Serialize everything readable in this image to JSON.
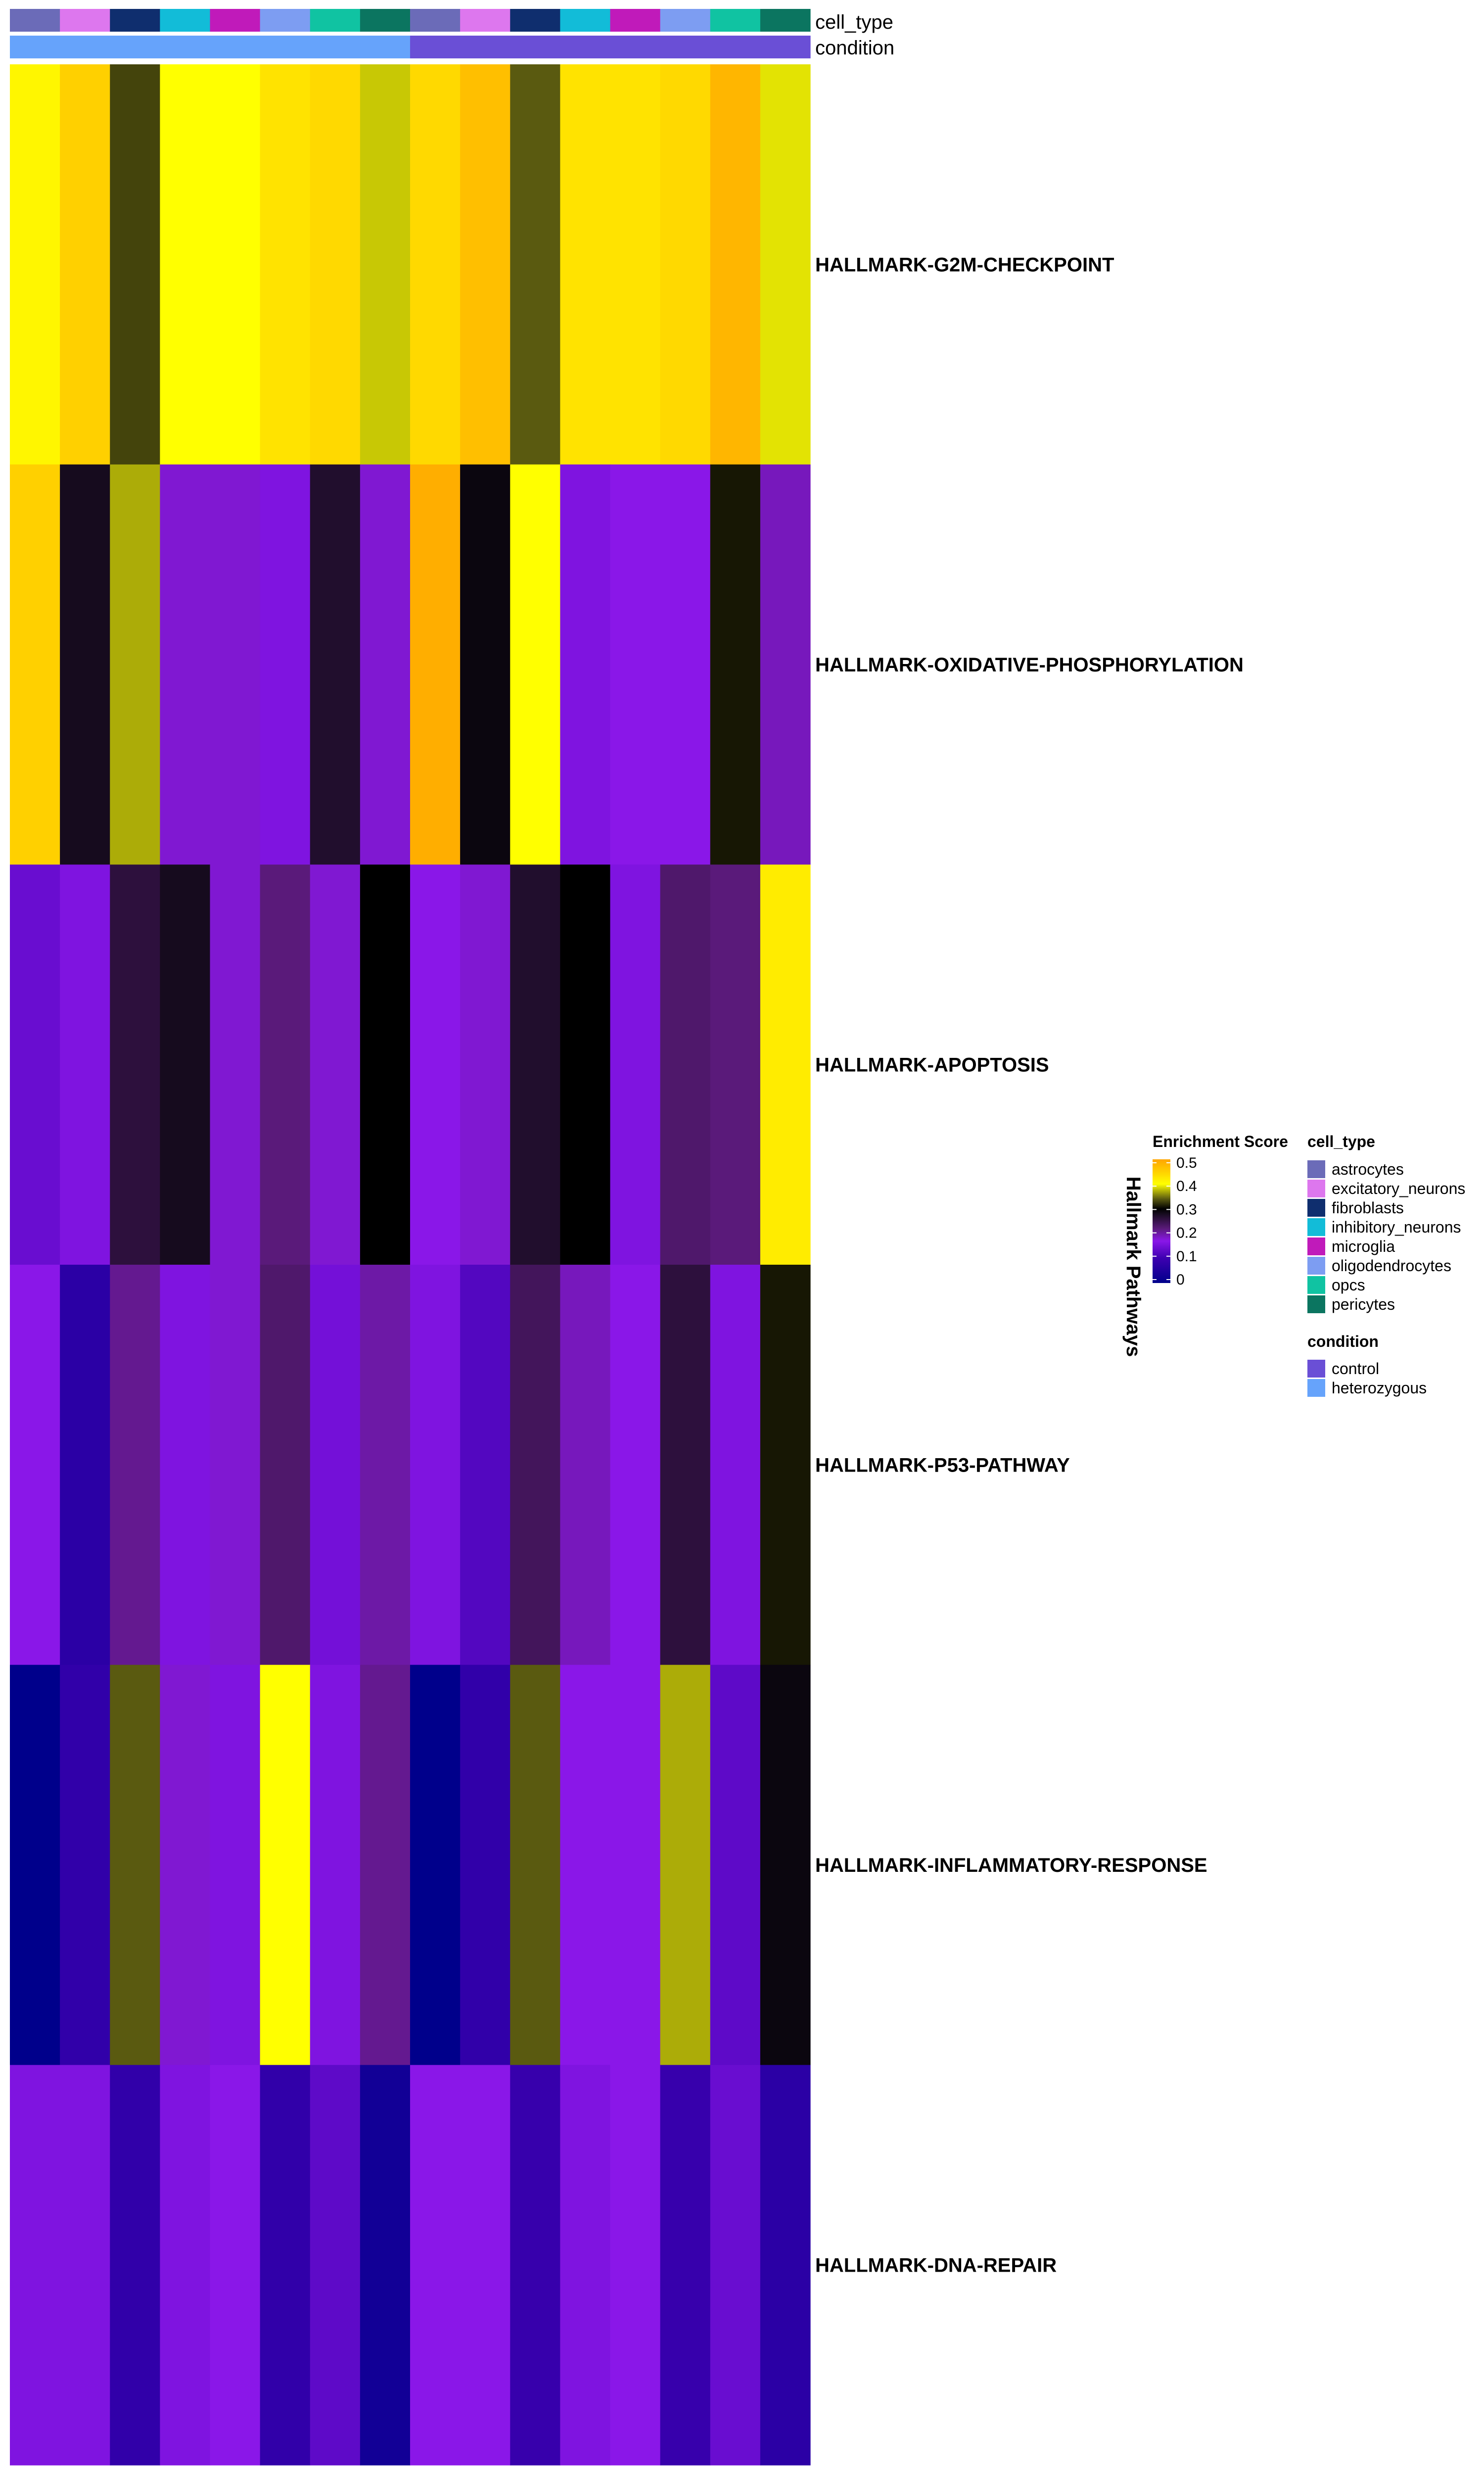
{
  "chart_data": {
    "type": "heatmap",
    "annotation_labels": {
      "cell_type": "cell_type",
      "condition": "condition"
    },
    "columns": [
      {
        "cell_type": "astrocytes",
        "condition": "heterozygous"
      },
      {
        "cell_type": "excitatory_neurons",
        "condition": "heterozygous"
      },
      {
        "cell_type": "fibroblasts",
        "condition": "heterozygous"
      },
      {
        "cell_type": "inhibitory_neurons",
        "condition": "heterozygous"
      },
      {
        "cell_type": "microglia",
        "condition": "heterozygous"
      },
      {
        "cell_type": "oligodendrocytes",
        "condition": "heterozygous"
      },
      {
        "cell_type": "opcs",
        "condition": "heterozygous"
      },
      {
        "cell_type": "pericytes",
        "condition": "heterozygous"
      },
      {
        "cell_type": "astrocytes",
        "condition": "control"
      },
      {
        "cell_type": "excitatory_neurons",
        "condition": "control"
      },
      {
        "cell_type": "fibroblasts",
        "condition": "control"
      },
      {
        "cell_type": "inhibitory_neurons",
        "condition": "control"
      },
      {
        "cell_type": "microglia",
        "condition": "control"
      },
      {
        "cell_type": "oligodendrocytes",
        "condition": "control"
      },
      {
        "cell_type": "opcs",
        "condition": "control"
      },
      {
        "cell_type": "pericytes",
        "condition": "control"
      }
    ],
    "rows": [
      {
        "name": "HALLMARK-G2M-CHECKPOINT",
        "values": [
          0.41,
          0.45,
          0.33,
          0.4,
          0.4,
          0.43,
          0.44,
          0.38,
          0.44,
          0.47,
          0.34,
          0.43,
          0.43,
          0.44,
          0.48,
          0.39
        ]
      },
      {
        "name": "HALLMARK-OXIDATIVE-PHOSPHORYLATION",
        "values": [
          0.45,
          0.28,
          0.37,
          0.18,
          0.18,
          0.16,
          0.27,
          0.18,
          0.49,
          0.29,
          0.4,
          0.16,
          0.17,
          0.17,
          0.31,
          0.19
        ]
      },
      {
        "name": "HALLMARK-APOPTOSIS",
        "values": [
          0.14,
          0.16,
          0.26,
          0.28,
          0.18,
          0.22,
          0.18,
          0.3,
          0.17,
          0.18,
          0.27,
          0.3,
          0.16,
          0.23,
          0.22,
          0.42
        ]
      },
      {
        "name": "HALLMARK-P53-PATHWAY",
        "values": [
          0.17,
          0.07,
          0.21,
          0.16,
          0.18,
          0.23,
          0.15,
          0.2,
          0.16,
          0.12,
          0.24,
          0.19,
          0.17,
          0.26,
          0.16,
          0.31
        ]
      },
      {
        "name": "HALLMARK-INFLAMMATORY-RESPONSE",
        "values": [
          0.0,
          0.08,
          0.34,
          0.18,
          0.16,
          0.4,
          0.16,
          0.21,
          0.0,
          0.08,
          0.34,
          0.17,
          0.17,
          0.37,
          0.13,
          0.29
        ]
      },
      {
        "name": "HALLMARK-DNA-REPAIR",
        "values": [
          0.16,
          0.16,
          0.08,
          0.16,
          0.17,
          0.08,
          0.13,
          0.03,
          0.17,
          0.17,
          0.09,
          0.16,
          0.17,
          0.09,
          0.14,
          0.07
        ]
      }
    ],
    "row_title": "Hallmark Pathways",
    "color_scale": {
      "title": "Enrichment Score",
      "ticks": [
        "0",
        "0.1",
        "0.2",
        "0.3",
        "0.4",
        "0.5"
      ],
      "tick_values": [
        0,
        0.1,
        0.2,
        0.3,
        0.4,
        0.5
      ],
      "range": [
        0,
        0.5
      ],
      "stops": [
        {
          "v": 0.0,
          "c": "#00008b"
        },
        {
          "v": 0.1,
          "c": "#3d00b0"
        },
        {
          "v": 0.17,
          "c": "#8a17e8"
        },
        {
          "v": 0.22,
          "c": "#5a1a7a"
        },
        {
          "v": 0.28,
          "c": "#160b1e"
        },
        {
          "v": 0.3,
          "c": "#000000"
        },
        {
          "v": 0.34,
          "c": "#5a5a10"
        },
        {
          "v": 0.4,
          "c": "#ffff00"
        },
        {
          "v": 0.45,
          "c": "#ffd000"
        },
        {
          "v": 0.5,
          "c": "#ffa500"
        }
      ]
    },
    "legend_cell_type": {
      "title": "cell_type",
      "entries": [
        {
          "label": "astrocytes",
          "color": "#6b6bb8"
        },
        {
          "label": "excitatory_neurons",
          "color": "#dd77ee"
        },
        {
          "label": "fibroblasts",
          "color": "#0f2e6e"
        },
        {
          "label": "inhibitory_neurons",
          "color": "#12bcd8"
        },
        {
          "label": "microglia",
          "color": "#c01aba"
        },
        {
          "label": "oligodendrocytes",
          "color": "#7d9df2"
        },
        {
          "label": "opcs",
          "color": "#10c3a2"
        },
        {
          "label": "pericytes",
          "color": "#0b7560"
        }
      ]
    },
    "legend_condition": {
      "title": "condition",
      "entries": [
        {
          "label": "control",
          "color": "#6a4fd6"
        },
        {
          "label": "heterozygous",
          "color": "#66a3fb"
        }
      ]
    }
  }
}
